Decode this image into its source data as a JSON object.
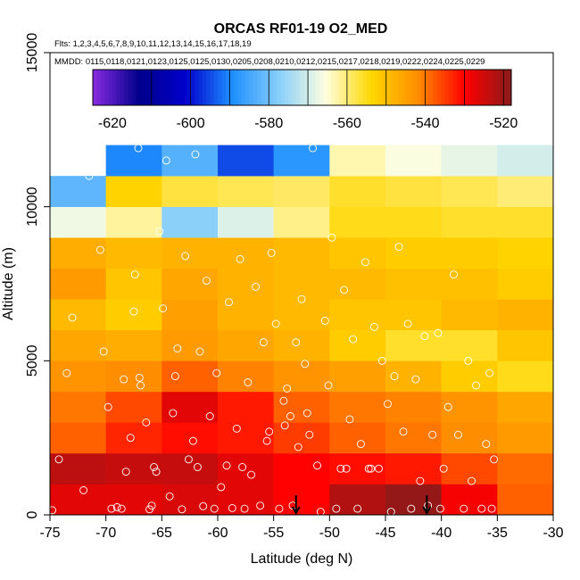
{
  "chart_data": {
    "type": "heatmap",
    "title": "ORCAS RF01-19 O2_MED",
    "flights_label": "Flts: 1,2,3,4,5,6,7,8,9,10,11,12,13,14,15,16,17,18,19",
    "mmdd_label": "MMDD: 0115,0118,0121,0123,0125,0125,0130,0205,0208,0210,0212,0215,0217,0218,0219,0222,0224,0225,0229",
    "xlabel": "Latitude (deg N)",
    "ylabel": "Altitude (m)",
    "xlim": [
      -75,
      -30
    ],
    "ylim": [
      0,
      15000
    ],
    "x_ticks": [
      -75,
      -70,
      -65,
      -60,
      -55,
      -50,
      -45,
      -40,
      -35,
      -30
    ],
    "y_ticks": [
      0,
      5000,
      10000,
      15000
    ],
    "colorbar": {
      "min": -625,
      "max": -518,
      "ticks": [
        -620,
        -600,
        -580,
        -560,
        -540,
        -520
      ],
      "colors": [
        "#8a2be2",
        "#00008b",
        "#0000cd",
        "#1e90ff",
        "#87cefa",
        "#ffffe0",
        "#ffd700",
        "#ff8c00",
        "#ff0000",
        "#8b1a1a"
      ]
    },
    "x_bins": [
      -75,
      -70,
      -65,
      -60,
      -55,
      -50,
      -45,
      -40,
      -35
    ],
    "y_bin_size": 1000,
    "cells": [
      [
        -75,
        0,
        -527
      ],
      [
        -70,
        0,
        -527
      ],
      [
        -65,
        0,
        -526
      ],
      [
        -60,
        0,
        -527
      ],
      [
        -55,
        0,
        -530
      ],
      [
        -50,
        0,
        -522
      ],
      [
        -45,
        0,
        -519
      ],
      [
        -40,
        0,
        -529
      ],
      [
        -35,
        0,
        -538
      ],
      [
        -75,
        1000,
        -523
      ],
      [
        -70,
        1000,
        -524
      ],
      [
        -65,
        1000,
        -524
      ],
      [
        -60,
        1000,
        -527
      ],
      [
        -55,
        1000,
        -530
      ],
      [
        -50,
        1000,
        -531
      ],
      [
        -45,
        1000,
        -532
      ],
      [
        -40,
        1000,
        -536
      ],
      [
        -35,
        1000,
        -539
      ],
      [
        -75,
        2000,
        -538
      ],
      [
        -70,
        2000,
        -533
      ],
      [
        -65,
        2000,
        -531
      ],
      [
        -60,
        2000,
        -532
      ],
      [
        -55,
        2000,
        -535
      ],
      [
        -50,
        2000,
        -538
      ],
      [
        -45,
        2000,
        -540
      ],
      [
        -40,
        2000,
        -542
      ],
      [
        -35,
        2000,
        -544
      ],
      [
        -75,
        3000,
        -540
      ],
      [
        -70,
        3000,
        -536
      ],
      [
        -65,
        3000,
        -527
      ],
      [
        -60,
        3000,
        -532
      ],
      [
        -55,
        3000,
        -538
      ],
      [
        -50,
        3000,
        -540
      ],
      [
        -45,
        3000,
        -541
      ],
      [
        -40,
        3000,
        -543
      ],
      [
        -35,
        3000,
        -546
      ],
      [
        -75,
        4000,
        -543
      ],
      [
        -70,
        4000,
        -542
      ],
      [
        -65,
        4000,
        -538
      ],
      [
        -60,
        4000,
        -541
      ],
      [
        -55,
        4000,
        -543
      ],
      [
        -50,
        4000,
        -545
      ],
      [
        -45,
        4000,
        -548
      ],
      [
        -40,
        4000,
        -552
      ],
      [
        -35,
        4000,
        -555
      ],
      [
        -75,
        5000,
        -546
      ],
      [
        -70,
        5000,
        -547
      ],
      [
        -65,
        5000,
        -544
      ],
      [
        -60,
        5000,
        -546
      ],
      [
        -55,
        5000,
        -548
      ],
      [
        -50,
        5000,
        -552
      ],
      [
        -45,
        5000,
        -556
      ],
      [
        -40,
        5000,
        -556
      ],
      [
        -35,
        5000,
        -551
      ],
      [
        -75,
        6000,
        -549
      ],
      [
        -70,
        6000,
        -552
      ],
      [
        -65,
        6000,
        -545
      ],
      [
        -60,
        6000,
        -548
      ],
      [
        -55,
        6000,
        -549
      ],
      [
        -50,
        6000,
        -551
      ],
      [
        -45,
        6000,
        -551
      ],
      [
        -40,
        6000,
        -549
      ],
      [
        -35,
        6000,
        -548
      ],
      [
        -75,
        7000,
        -544
      ],
      [
        -70,
        7000,
        -551
      ],
      [
        -65,
        7000,
        -546
      ],
      [
        -60,
        7000,
        -548
      ],
      [
        -55,
        7000,
        -549
      ],
      [
        -50,
        7000,
        -549
      ],
      [
        -45,
        7000,
        -550
      ],
      [
        -40,
        7000,
        -550
      ],
      [
        -35,
        7000,
        -552
      ],
      [
        -75,
        8000,
        -547
      ],
      [
        -70,
        8000,
        -549
      ],
      [
        -65,
        8000,
        -548
      ],
      [
        -60,
        8000,
        -548
      ],
      [
        -55,
        8000,
        -549
      ],
      [
        -50,
        8000,
        -551
      ],
      [
        -45,
        8000,
        -552
      ],
      [
        -40,
        8000,
        -552
      ],
      [
        -35,
        8000,
        -553
      ],
      [
        -75,
        9000,
        -567
      ],
      [
        -70,
        9000,
        -562
      ],
      [
        -65,
        9000,
        -577
      ],
      [
        -60,
        9000,
        -569
      ],
      [
        -55,
        9000,
        -561
      ],
      [
        -50,
        9000,
        -555
      ],
      [
        -45,
        9000,
        -555
      ],
      [
        -40,
        9000,
        -556
      ],
      [
        -35,
        9000,
        -556
      ],
      [
        -75,
        10000,
        -582
      ],
      [
        -70,
        10000,
        -553
      ],
      [
        -65,
        10000,
        -557
      ],
      [
        -60,
        10000,
        -558
      ],
      [
        -55,
        10000,
        -559
      ],
      [
        -50,
        10000,
        -556
      ],
      [
        -45,
        10000,
        -557
      ],
      [
        -40,
        10000,
        -558
      ],
      [
        -35,
        10000,
        -560
      ],
      [
        -70,
        11000,
        -590
      ],
      [
        -65,
        11000,
        -583
      ],
      [
        -60,
        11000,
        -595
      ],
      [
        -55,
        11000,
        -588
      ],
      [
        -50,
        11000,
        -563
      ],
      [
        -45,
        11000,
        -566
      ],
      [
        -40,
        11000,
        -568
      ],
      [
        -35,
        11000,
        -570
      ]
    ],
    "samples": [
      [
        -74.8,
        150
      ],
      [
        -74.2,
        1800
      ],
      [
        -73.5,
        4600
      ],
      [
        -73.0,
        6400
      ],
      [
        -72.0,
        800
      ],
      [
        -71.5,
        11000
      ],
      [
        -70.5,
        8600
      ],
      [
        -70.2,
        5300
      ],
      [
        -69.8,
        3500
      ],
      [
        -69.5,
        200
      ],
      [
        -69.0,
        250
      ],
      [
        -68.6,
        200
      ],
      [
        -68.2,
        1400
      ],
      [
        -67.8,
        2500
      ],
      [
        -67.5,
        6600
      ],
      [
        -67.4,
        7800
      ],
      [
        -67.1,
        11900
      ],
      [
        -66.9,
        4200
      ],
      [
        -66.4,
        3000
      ],
      [
        -66.1,
        180
      ],
      [
        -65.9,
        300
      ],
      [
        -65.5,
        1400
      ],
      [
        -65.2,
        9200
      ],
      [
        -64.9,
        6700
      ],
      [
        -64.6,
        11500
      ],
      [
        -64.3,
        600
      ],
      [
        -64.0,
        3300
      ],
      [
        -63.6,
        5400
      ],
      [
        -63.2,
        180
      ],
      [
        -62.9,
        8400
      ],
      [
        -62.6,
        1800
      ],
      [
        -62.2,
        2400
      ],
      [
        -62.0,
        11700
      ],
      [
        -61.6,
        5300
      ],
      [
        -61.3,
        280
      ],
      [
        -61.0,
        7600
      ],
      [
        -60.7,
        3200
      ],
      [
        -60.3,
        200
      ],
      [
        -60.1,
        4600
      ],
      [
        -59.7,
        900
      ],
      [
        -59.2,
        1600
      ],
      [
        -59.0,
        6900
      ],
      [
        -58.7,
        220
      ],
      [
        -58.3,
        2800
      ],
      [
        -58.0,
        8300
      ],
      [
        -57.6,
        200
      ],
      [
        -57.3,
        4300
      ],
      [
        -57.0,
        1300
      ],
      [
        -56.6,
        7400
      ],
      [
        -56.2,
        300
      ],
      [
        -55.9,
        5600
      ],
      [
        -55.6,
        2400
      ],
      [
        -55.2,
        8500
      ],
      [
        -54.8,
        6200
      ],
      [
        -54.5,
        200
      ],
      [
        -54.1,
        3700
      ],
      [
        -53.8,
        4100
      ],
      [
        -53.5,
        3200
      ],
      [
        -53.3,
        300
      ],
      [
        -53.0,
        5600
      ],
      [
        -52.8,
        2200
      ],
      [
        -52.5,
        7000
      ],
      [
        -52.2,
        4900
      ],
      [
        -51.8,
        2600
      ],
      [
        -51.5,
        11900
      ],
      [
        -51.1,
        1600
      ],
      [
        -50.8,
        100
      ],
      [
        -50.4,
        6300
      ],
      [
        -50.1,
        4200
      ],
      [
        -49.8,
        9000
      ],
      [
        -49.4,
        200
      ],
      [
        -49.0,
        1500
      ],
      [
        -48.7,
        7300
      ],
      [
        -48.2,
        3100
      ],
      [
        -47.9,
        5700
      ],
      [
        -47.5,
        200
      ],
      [
        -47.2,
        2300
      ],
      [
        -46.8,
        8200
      ],
      [
        -46.5,
        1500
      ],
      [
        -46.0,
        6100
      ],
      [
        -45.6,
        1500
      ],
      [
        -45.3,
        5000
      ],
      [
        -44.8,
        3600
      ],
      [
        -44.5,
        100
      ],
      [
        -44.2,
        4500
      ],
      [
        -43.8,
        8700
      ],
      [
        -43.4,
        2700
      ],
      [
        -43.0,
        6200
      ],
      [
        -42.7,
        200
      ],
      [
        -42.3,
        4400
      ],
      [
        -41.9,
        1100
      ],
      [
        -41.5,
        5800
      ],
      [
        -41.2,
        300
      ],
      [
        -40.8,
        2600
      ],
      [
        -40.3,
        5900
      ],
      [
        -40.1,
        200
      ],
      [
        -39.8,
        1500
      ],
      [
        -39.4,
        3500
      ],
      [
        -38.9,
        7800
      ],
      [
        -38.5,
        2600
      ],
      [
        -38.0,
        200
      ],
      [
        -37.6,
        5000
      ],
      [
        -37.3,
        1100
      ],
      [
        -36.9,
        4200
      ],
      [
        -36.4,
        200
      ],
      [
        -36.0,
        2300
      ],
      [
        -35.7,
        4600
      ],
      [
        -35.3,
        1800
      ],
      [
        -35.5,
        200
      ],
      [
        -65.7,
        1550
      ],
      [
        -61.8,
        1550
      ],
      [
        -57.8,
        1550
      ],
      [
        -48.5,
        1500
      ],
      [
        -46.3,
        1500
      ],
      [
        -68.4,
        4400
      ],
      [
        -67.0,
        4450
      ],
      [
        -63.8,
        4500
      ],
      [
        -55.4,
        2700
      ],
      [
        -54.0,
        2900
      ],
      [
        -52.0,
        3300
      ]
    ],
    "arrows": [
      -53,
      -41.3
    ]
  }
}
